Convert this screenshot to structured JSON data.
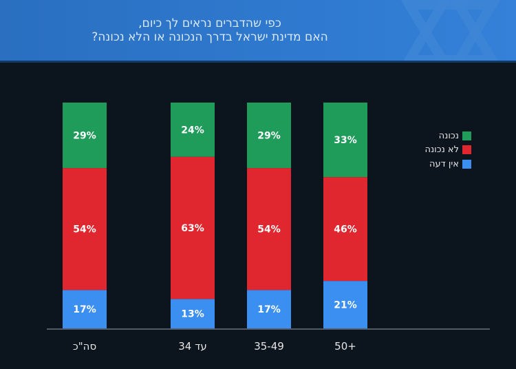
{
  "chart_data": {
    "type": "bar",
    "stacked": true,
    "title": "כפי שהדברים נראים לך כיום, האם מדינת ישראל בדרך הנכונה או הלא נכונה?",
    "title_lines": [
      "כפי שהדברים נראים לך כיום,",
      "האם מדינת ישראל בדרך הנכונה או הלא נכונה?"
    ],
    "categories": [
      "סה\"כ",
      "עד 34",
      "35-49",
      "50+"
    ],
    "series": [
      {
        "name": "אין דעה",
        "color": "#3b8ff0",
        "values": [
          17,
          13,
          17,
          21
        ]
      },
      {
        "name": "לא נכונה",
        "color": "#e0262f",
        "values": [
          54,
          63,
          54,
          46
        ]
      },
      {
        "name": "נכונה",
        "color": "#1f9b5a",
        "values": [
          29,
          24,
          29,
          33
        ]
      }
    ],
    "legend_order": [
      "נכונה",
      "לא נכונה",
      "אין דעה"
    ],
    "value_suffix": "%",
    "ylim": [
      0,
      100
    ],
    "legend_position": "right",
    "grid": false
  }
}
